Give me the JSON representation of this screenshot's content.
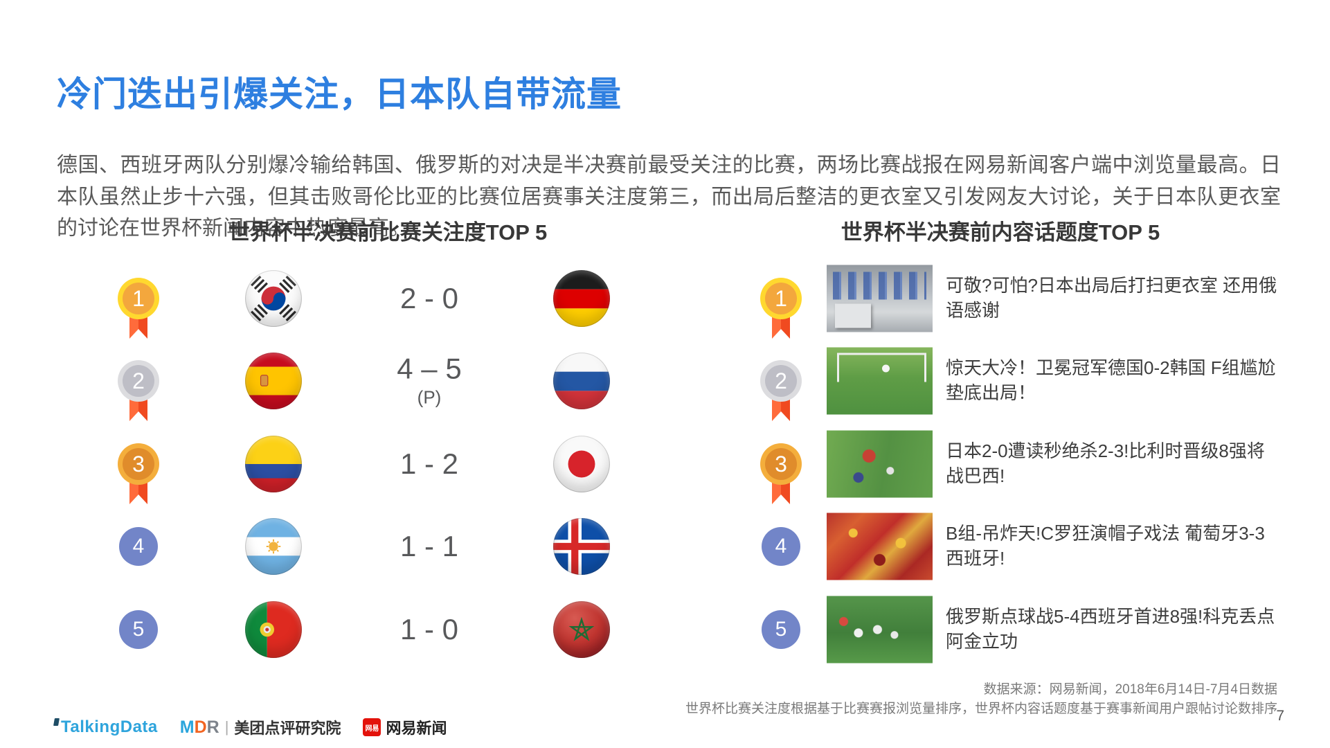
{
  "page": {
    "title": "冷门迭出引爆关注，日本队自带流量",
    "paragraph": "德国、西班牙两队分别爆冷输给韩国、俄罗斯的对决是半决赛前最受关注的比赛，两场比赛战报在网易新闻客户端中浏览量最高。日本队虽然止步十六强，但其击败哥伦比亚的比赛位居赛事关注度第三，而出局后整洁的更衣室又引发网友大讨论，关于日本队更衣室的讨论在世界杯新闻内容中热度最高。",
    "page_number": "7"
  },
  "left_section": {
    "heading": "世界杯半决赛前比赛关注度TOP 5",
    "rows": [
      {
        "rank": "1",
        "medal": "gold",
        "flag_home": "south-korea",
        "score": "2 - 0",
        "score_note": "",
        "flag_away": "germany"
      },
      {
        "rank": "2",
        "medal": "silver",
        "flag_home": "spain",
        "score": "4 – 5",
        "score_note": "(P)",
        "flag_away": "russia"
      },
      {
        "rank": "3",
        "medal": "bronze",
        "flag_home": "colombia",
        "score": "1 - 2",
        "score_note": "",
        "flag_away": "japan"
      },
      {
        "rank": "4",
        "medal": "blue",
        "flag_home": "argentina",
        "score": "1 - 1",
        "score_note": "",
        "flag_away": "iceland"
      },
      {
        "rank": "5",
        "medal": "blue",
        "flag_home": "portugal",
        "score": "1 - 0",
        "score_note": "",
        "flag_away": "morocco"
      }
    ]
  },
  "right_section": {
    "heading": "世界杯半决赛前内容话题度TOP 5",
    "items": [
      {
        "rank": "1",
        "medal": "gold",
        "thumbnail": "locker-room",
        "headline": "可敬?可怕?日本出局后打扫更衣室 还用俄语感谢"
      },
      {
        "rank": "2",
        "medal": "silver",
        "thumbnail": "goal-save",
        "headline": "惊天大冷！卫冕冠军德国0-2韩国 F组尴尬垫底出局！"
      },
      {
        "rank": "3",
        "medal": "bronze",
        "thumbnail": "japan-belgium",
        "headline": "日本2-0遭读秒绝杀2-3!比利时晋级8强将战巴西!"
      },
      {
        "rank": "4",
        "medal": "blue",
        "thumbnail": "spain-fans",
        "headline": "B组-吊炸天!C罗狂演帽子戏法 葡萄牙3-3西班牙!"
      },
      {
        "rank": "5",
        "medal": "blue",
        "thumbnail": "russia-celebration",
        "headline": "俄罗斯点球战5-4西班牙首进8强!科克丢点阿金立功"
      }
    ]
  },
  "footer": {
    "source_line1": "数据来源：网易新闻，2018年6月14日-7月4日数据",
    "source_line2": "世界杯比赛关注度根据基于比赛赛报浏览量排序，世界杯内容话题度基于赛事新闻用户跟帖讨论数排序",
    "logos": {
      "talkingdata": "TalkingData",
      "mdr": "MDR",
      "meituan": "美团点评研究院",
      "netease_badge": "网易",
      "netease_text": "网易新闻"
    }
  },
  "colors": {
    "title_blue": "#2E7FE0",
    "body_gray": "#595959",
    "rank_blue": "#7285C8",
    "medal_gold_ring": "#FFD82F",
    "medal_gold_inner": "#F3A73D",
    "medal_silver_ring": "#DCDCDF",
    "medal_silver_inner": "#BEBEC6",
    "medal_bronze_ring": "#F4AE3C",
    "medal_bronze_inner": "#E08C2B",
    "ribbon_orange": "#F04A20"
  }
}
